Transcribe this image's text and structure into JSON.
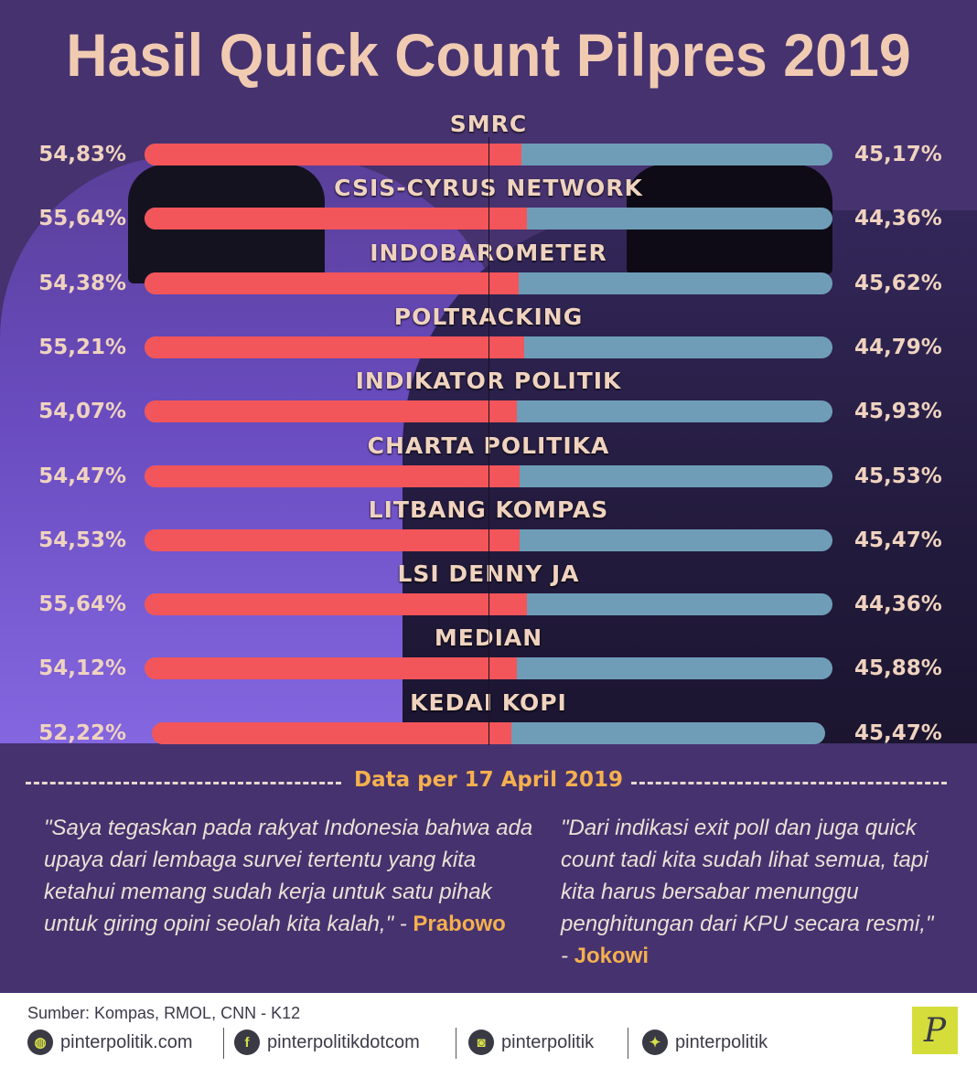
{
  "title": "Hasil Quick Count Pilpres 2019",
  "chart_data": {
    "type": "bar",
    "orientation": "horizontal-stacked",
    "colors": {
      "left": "#f2555a",
      "right": "#6f9db8"
    },
    "categories": [
      "SMRC",
      "CSIS-CYRUS NETWORK",
      "INDOBAROMETER",
      "POLTRACKING",
      "INDIKATOR POLITIK",
      "CHARTA POLITIKA",
      "LITBANG KOMPAS",
      "LSI DENNY JA",
      "MEDIAN",
      "KEDAI KOPI"
    ],
    "left_labels": [
      "54,83%",
      "55,64%",
      "54,38%",
      "55,21%",
      "54,07%",
      "54,47%",
      "54,53%",
      "55,64%",
      "54,12%",
      "52,22%"
    ],
    "right_labels": [
      "45,17%",
      "44,36%",
      "45,62%",
      "44,79%",
      "45,93%",
      "45,53%",
      "45,47%",
      "44,36%",
      "45,88%",
      "45,47%"
    ],
    "series": [
      {
        "values": [
          54.83,
          55.64,
          54.38,
          55.21,
          54.07,
          54.47,
          54.53,
          55.64,
          54.12,
          52.22
        ]
      },
      {
        "values": [
          45.17,
          44.36,
          45.62,
          44.79,
          45.93,
          45.53,
          45.47,
          44.36,
          45.88,
          45.47
        ]
      }
    ]
  },
  "date_note": "Data per 17 April 2019",
  "quotes": [
    {
      "text": "\"Saya tegaskan pada rakyat Indonesia bahwa ada upaya dari lembaga survei tertentu yang kita ketahui memang sudah kerja untuk satu pihak untuk giring opini seolah kita kalah,\" - ",
      "author": "Prabowo"
    },
    {
      "text": "\"Dari indikasi exit poll dan juga quick count tadi kita sudah lihat semua, tapi kita harus bersabar menunggu penghitungan dari KPU secara resmi,\" - ",
      "author": "Jokowi"
    }
  ],
  "footer": {
    "source": "Sumber:  Kompas, RMOL, CNN - K12",
    "social": [
      {
        "icon": "globe-icon",
        "glyph": "◍",
        "label": "pinterpolitik.com"
      },
      {
        "icon": "facebook-icon",
        "glyph": "f",
        "label": "pinterpolitikdotcom"
      },
      {
        "icon": "instagram-icon",
        "glyph": "◙",
        "label": "pinterpolitik"
      },
      {
        "icon": "twitter-icon",
        "glyph": "✦",
        "label": "pinterpolitik"
      }
    ],
    "logo": "P"
  }
}
